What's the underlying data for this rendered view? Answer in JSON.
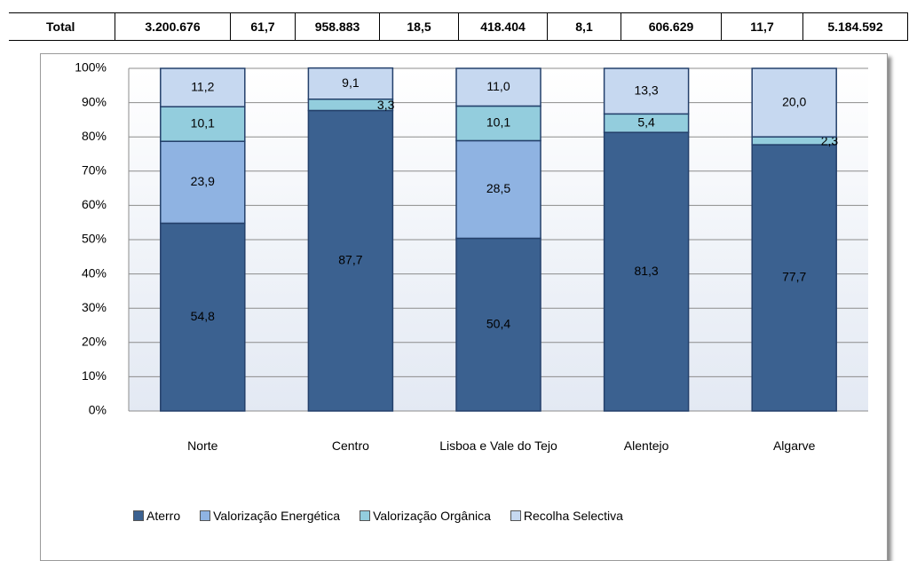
{
  "table_row": [
    "Total",
    "3.200.676",
    "61,7",
    "958.883",
    "18,5",
    "418.404",
    "8,1",
    "606.629",
    "11,7",
    "5.184.592"
  ],
  "chart_data": {
    "type": "stacked_bar",
    "categories": [
      "Norte",
      "Centro",
      "Lisboa e Vale do Tejo",
      "Alentejo",
      "Algarve"
    ],
    "series": [
      {
        "name": "Aterro",
        "color": "#3b6190",
        "values": [
          54.8,
          87.7,
          50.4,
          81.3,
          77.7
        ],
        "value_labels": [
          "54,8",
          "87,7",
          "50,4",
          "81,3",
          "77,7"
        ]
      },
      {
        "name": "Valorização Energética",
        "color": "#8fb3e2",
        "values": [
          23.9,
          null,
          28.5,
          null,
          null
        ],
        "value_labels": [
          "23,9",
          null,
          "28,5",
          null,
          null
        ]
      },
      {
        "name": "Valorização Orgânica",
        "color": "#93cddd",
        "values": [
          10.1,
          3.3,
          10.1,
          5.4,
          2.3
        ],
        "value_labels": [
          "10,1",
          "3,3",
          "10,1",
          "5,4",
          "2,3"
        ]
      },
      {
        "name": "Recolha Selectiva",
        "color": "#c6d8f0",
        "values": [
          11.2,
          9.1,
          11.0,
          13.3,
          20.0
        ],
        "value_labels": [
          "11,2",
          "9,1",
          "11,0",
          "13,3",
          "20,0"
        ]
      }
    ],
    "ylim": [
      0,
      100
    ],
    "yticks": [
      {
        "value": 0,
        "label": "0%"
      },
      {
        "value": 10,
        "label": "10%"
      },
      {
        "value": 20,
        "label": "20%"
      },
      {
        "value": 30,
        "label": "30%"
      },
      {
        "value": 40,
        "label": "40%"
      },
      {
        "value": 50,
        "label": "50%"
      },
      {
        "value": 60,
        "label": "60%"
      },
      {
        "value": 70,
        "label": "70%"
      },
      {
        "value": 80,
        "label": "80%"
      },
      {
        "value": 90,
        "label": "90%"
      },
      {
        "value": 100,
        "label": "100%"
      }
    ],
    "grid": true,
    "legend": "bottom"
  }
}
